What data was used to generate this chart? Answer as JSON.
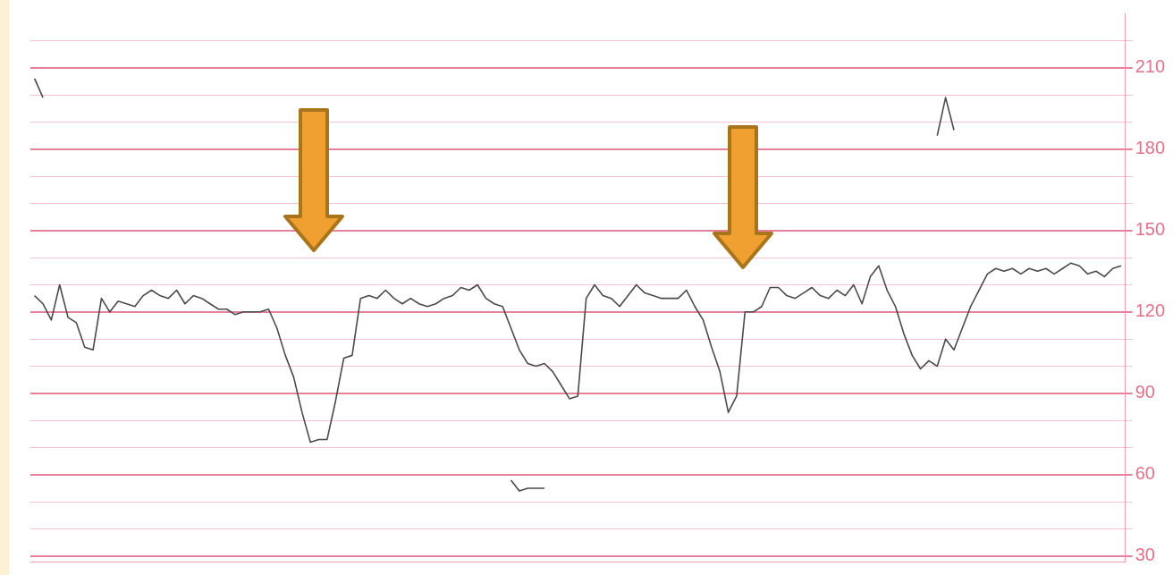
{
  "chart_data": {
    "type": "line",
    "categories": [
      null,
      null,
      null,
      null,
      null,
      null,
      null,
      null,
      null,
      null,
      null,
      null,
      null,
      null,
      null,
      null,
      null,
      null,
      null,
      null,
      null,
      null,
      null,
      null,
      null,
      null,
      null,
      null,
      null,
      null,
      null,
      null,
      null,
      null,
      null,
      null,
      null,
      null,
      null,
      null,
      null,
      null,
      null,
      null,
      null,
      null,
      null,
      null,
      null,
      null,
      null,
      null,
      null,
      null,
      null,
      null,
      null,
      null,
      null,
      null,
      null,
      null,
      null,
      null,
      null,
      null,
      null,
      null,
      null,
      null,
      null,
      null,
      null,
      null,
      null,
      null,
      null,
      null,
      null,
      null,
      null,
      null,
      null,
      null,
      null,
      null,
      null,
      null,
      null,
      null,
      null,
      null,
      null,
      null,
      null,
      null,
      null,
      null,
      null,
      null,
      null,
      null,
      null,
      null,
      null,
      null,
      null,
      null,
      null,
      null,
      null,
      null,
      null,
      null,
      null,
      null,
      null,
      null,
      null,
      null,
      null,
      null,
      null,
      null,
      null,
      null,
      null,
      null,
      null,
      null,
      null
    ],
    "series": [
      {
        "color": "#4a4a4a",
        "values": [
          126,
          123,
          117,
          130,
          118,
          116,
          107,
          106,
          125,
          120,
          124,
          123,
          122,
          126,
          128,
          126,
          125,
          128,
          123,
          126,
          125,
          123,
          121,
          121,
          119,
          120,
          120,
          120,
          121,
          114,
          104,
          96,
          83,
          72,
          73,
          73,
          87,
          103,
          104,
          125,
          126,
          125,
          128,
          125,
          123,
          125,
          123,
          122,
          123,
          125,
          126,
          129,
          128,
          130,
          125,
          123,
          122,
          114,
          106,
          101,
          100,
          101,
          98,
          93,
          88,
          89,
          125,
          130,
          126,
          125,
          122,
          126,
          130,
          127,
          126,
          125,
          125,
          125,
          128,
          122,
          117,
          107,
          98,
          83,
          89,
          120,
          120,
          122,
          129,
          129,
          126,
          125,
          127,
          129,
          126,
          125,
          128,
          126,
          130,
          123,
          133,
          137,
          128,
          122,
          112,
          104,
          99,
          102,
          100,
          110,
          106,
          114,
          122,
          128,
          134,
          136,
          135,
          136,
          134,
          136,
          135,
          136,
          134,
          136,
          138,
          137,
          134,
          135,
          133,
          136,
          137
        ]
      },
      {
        "color": "#4a4a4a",
        "values": [
          206,
          199,
          null,
          null,
          null,
          null,
          null,
          null,
          null,
          null,
          null,
          null,
          null,
          null,
          null,
          null,
          null,
          null,
          null,
          null,
          null,
          null,
          null,
          null,
          null,
          null,
          null,
          null,
          null,
          null,
          null,
          null,
          null,
          null,
          null,
          null,
          null,
          null,
          null,
          null,
          null,
          null,
          null,
          null,
          null,
          null,
          null,
          null,
          null,
          null,
          null,
          null,
          null,
          null,
          null,
          null,
          null,
          null,
          null,
          null,
          null,
          null,
          null,
          null,
          null,
          null,
          null,
          null,
          null,
          null,
          null,
          null,
          null,
          null,
          null,
          null,
          null,
          null,
          null,
          null,
          null,
          null,
          null,
          null,
          null,
          null,
          null,
          null,
          null,
          null,
          null,
          null,
          null,
          null,
          null,
          null,
          null,
          null,
          null,
          null,
          null,
          null,
          null,
          null,
          null,
          null,
          null,
          null,
          null,
          null,
          null,
          null,
          null,
          null,
          null,
          null,
          null,
          null,
          null,
          null,
          null,
          null,
          null,
          null,
          null,
          null,
          null,
          null,
          null,
          null,
          null
        ]
      },
      {
        "color": "#4a4a4a",
        "values": [
          null,
          null,
          null,
          null,
          null,
          null,
          null,
          null,
          null,
          null,
          null,
          null,
          null,
          null,
          null,
          null,
          null,
          null,
          null,
          null,
          null,
          null,
          null,
          null,
          null,
          null,
          null,
          null,
          null,
          null,
          null,
          null,
          null,
          null,
          null,
          null,
          null,
          null,
          null,
          null,
          null,
          null,
          null,
          null,
          null,
          null,
          null,
          null,
          null,
          null,
          null,
          null,
          null,
          null,
          null,
          null,
          null,
          58,
          54,
          55,
          55,
          55,
          null,
          null,
          null,
          null,
          null,
          null,
          null,
          null,
          null,
          null,
          null,
          null,
          null,
          null,
          null,
          null,
          null,
          null,
          null,
          null,
          null,
          null,
          null,
          null,
          null,
          null,
          null,
          null,
          null,
          null,
          null,
          null,
          null,
          null,
          null,
          null,
          null,
          null,
          null,
          null,
          null,
          null,
          null,
          null,
          null,
          null,
          null,
          null,
          null,
          null,
          null,
          null,
          null,
          null,
          null,
          null,
          null,
          null,
          null,
          null,
          null,
          null,
          null,
          null,
          null,
          null,
          null,
          null,
          null
        ]
      },
      {
        "color": "#4a4a4a",
        "values": [
          null,
          null,
          null,
          null,
          null,
          null,
          null,
          null,
          null,
          null,
          null,
          null,
          null,
          null,
          null,
          null,
          null,
          null,
          null,
          null,
          null,
          null,
          null,
          null,
          null,
          null,
          null,
          null,
          null,
          null,
          null,
          null,
          null,
          null,
          null,
          null,
          null,
          null,
          null,
          null,
          null,
          null,
          null,
          null,
          null,
          null,
          null,
          null,
          null,
          null,
          null,
          null,
          null,
          null,
          null,
          null,
          null,
          null,
          null,
          null,
          null,
          null,
          null,
          null,
          null,
          null,
          null,
          null,
          null,
          null,
          null,
          null,
          null,
          null,
          null,
          null,
          null,
          null,
          null,
          null,
          null,
          null,
          null,
          null,
          null,
          null,
          null,
          null,
          null,
          null,
          null,
          null,
          null,
          null,
          null,
          null,
          null,
          null,
          null,
          null,
          null,
          null,
          null,
          null,
          null,
          null,
          null,
          null,
          185,
          199,
          187,
          null,
          null,
          null,
          null,
          null,
          null,
          null,
          null,
          null,
          null,
          null,
          null,
          null,
          null,
          null,
          null,
          null,
          null,
          null,
          null
        ]
      }
    ],
    "ylim": [
      28,
      230
    ],
    "yticks": [
      30,
      {
        "value": 40,
        "label": null
      },
      {
        "value": 50,
        "label": null
      },
      60,
      {
        "value": 70,
        "label": null
      },
      {
        "value": 80,
        "label": null
      },
      90,
      {
        "value": 100,
        "label": null
      },
      {
        "value": 110,
        "label": null
      },
      120,
      {
        "value": 130,
        "label": null
      },
      {
        "value": 140,
        "label": null
      },
      150,
      {
        "value": 160,
        "label": null
      },
      {
        "value": 170,
        "label": null
      },
      180,
      {
        "value": 190,
        "label": null
      },
      {
        "value": 200,
        "label": null
      },
      210,
      {
        "value": 220,
        "label": null
      }
    ],
    "grid": "y",
    "tick_labels": "y",
    "marker": "none",
    "line_style": "solid"
  }
}
